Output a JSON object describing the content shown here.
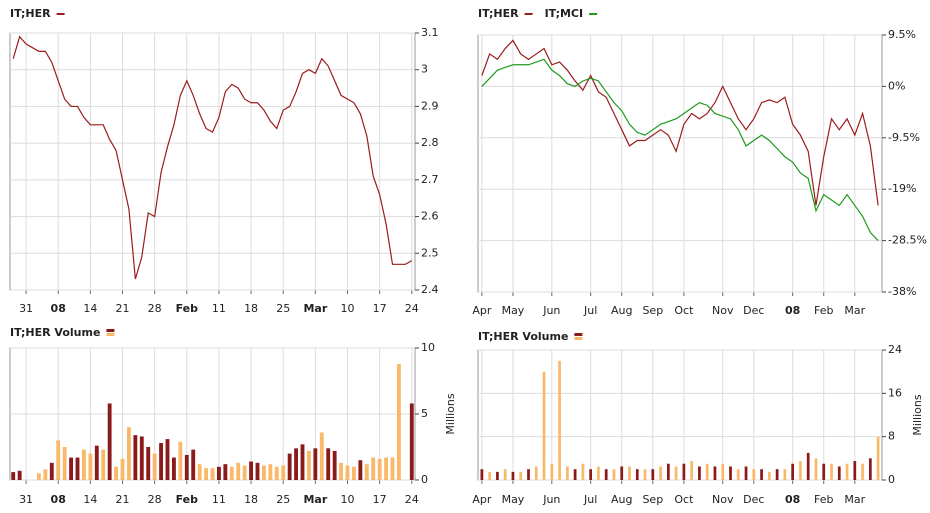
{
  "chart_data": [
    {
      "type": "line",
      "series": [
        {
          "name": "IT;HER",
          "color": "#9b1c1c",
          "values": [
            3.03,
            3.09,
            3.07,
            3.06,
            3.05,
            3.05,
            3.02,
            2.97,
            2.92,
            2.9,
            2.9,
            2.87,
            2.85,
            2.85,
            2.85,
            2.81,
            2.78,
            2.7,
            2.62,
            2.43,
            2.49,
            2.61,
            2.6,
            2.72,
            2.79,
            2.85,
            2.93,
            2.97,
            2.93,
            2.88,
            2.84,
            2.83,
            2.87,
            2.94,
            2.96,
            2.95,
            2.92,
            2.91,
            2.91,
            2.89,
            2.86,
            2.84,
            2.89,
            2.9,
            2.94,
            2.99,
            3.0,
            2.99,
            3.03,
            3.01,
            2.97,
            2.93,
            2.92,
            2.91,
            2.88,
            2.82,
            2.71,
            2.66,
            2.58,
            2.47,
            2.47,
            2.47,
            2.48
          ]
        }
      ],
      "categories": [
        null,
        null,
        "31",
        null,
        null,
        null,
        null,
        "08",
        null,
        null,
        null,
        null,
        "14",
        null,
        null,
        null,
        null,
        "21",
        null,
        null,
        null,
        null,
        "28",
        null,
        null,
        null,
        null,
        "Feb",
        null,
        null,
        null,
        null,
        "11",
        null,
        null,
        null,
        null,
        "18",
        null,
        null,
        null,
        null,
        "25",
        null,
        null,
        null,
        null,
        "Mar",
        null,
        null,
        null,
        null,
        "10",
        null,
        null,
        null,
        null,
        "17",
        null,
        null,
        null,
        null,
        "24"
      ],
      "highlight": {
        "color": "#8b1a1a",
        "categories": [
          7,
          27,
          47
        ]
      },
      "ylim": [
        2.4,
        3.1
      ],
      "yticks": [
        2.4,
        2.5,
        2.6,
        2.7,
        2.8,
        2.9,
        3,
        3.1
      ],
      "grid": true
    },
    {
      "type": "line",
      "series": [
        {
          "name": "IT;HER",
          "color": "#9b1c1c",
          "values": [
            2,
            6,
            5,
            7,
            8.5,
            6,
            5,
            6,
            7,
            4,
            4.5,
            3,
            1,
            -0.7,
            2,
            -1,
            -2,
            -5,
            -8,
            -11,
            -10,
            -10,
            -9,
            -8,
            -9,
            -12,
            -7,
            -5,
            -6,
            -5,
            -3,
            0,
            -3,
            -6,
            -8,
            -6,
            -3,
            -2.5,
            -3,
            -2,
            -7,
            -9,
            -12,
            -22,
            -13,
            -6,
            -8,
            -6,
            -9,
            -5,
            -11,
            -22
          ]
        },
        {
          "name": "IT;MCI",
          "color": "#1e9a1e",
          "values": [
            0,
            1.5,
            3,
            3.5,
            4,
            4,
            4,
            4.5,
            5,
            3,
            2,
            0.5,
            0,
            1,
            1.5,
            1,
            -1,
            -3,
            -4.5,
            -7,
            -8.5,
            -9,
            -8,
            -7,
            -6.5,
            -6,
            -5,
            -4,
            -3,
            -3.5,
            -5,
            -5.5,
            -6,
            -8,
            -11,
            -10,
            -9,
            -10,
            -11.5,
            -13,
            -14,
            -16,
            -17,
            -23,
            -20,
            -21,
            -22,
            -20,
            -22,
            -24,
            -27,
            -28.5
          ]
        }
      ],
      "categories": [
        "Apr",
        null,
        null,
        null,
        "May",
        null,
        null,
        null,
        null,
        "Jun",
        null,
        null,
        null,
        null,
        "Jul",
        null,
        null,
        null,
        "Aug",
        null,
        null,
        null,
        "Sep",
        null,
        null,
        null,
        "Oct",
        null,
        null,
        null,
        null,
        "Nov",
        null,
        null,
        null,
        "Dec",
        null,
        null,
        null,
        null,
        "08",
        null,
        null,
        null,
        "Feb",
        null,
        null,
        null,
        "Mar",
        null,
        null,
        null
      ],
      "highlight": {
        "color": "#8b1a1a",
        "categories": [
          40
        ]
      },
      "ylim": [
        -38,
        9.5
      ],
      "yticks": [
        {
          "value": 9.5,
          "label": "9.5%"
        },
        {
          "value": 0,
          "label": "0%"
        },
        {
          "value": -9.5,
          "label": "-9.5%"
        },
        {
          "value": -19,
          "label": "-19%"
        },
        {
          "value": -28.5,
          "label": "-28.5%"
        },
        {
          "value": -38,
          "label": "-38%"
        }
      ],
      "grid": true
    },
    {
      "type": "bar",
      "series": [
        {
          "name": "IT;HER Volume",
          "values": [
            0.6,
            0.7,
            null,
            null,
            0.5,
            0.8,
            1.3,
            3.0,
            2.5,
            1.7,
            1.7,
            2.3,
            2.0,
            2.6,
            2.3,
            5.8,
            1.0,
            1.6,
            4.0,
            3.4,
            3.3,
            2.5,
            2.0,
            2.8,
            3.1,
            1.7,
            2.9,
            1.9,
            2.3,
            1.2,
            0.9,
            0.9,
            1.0,
            1.2,
            1.0,
            1.3,
            1.1,
            1.4,
            1.3,
            1.1,
            1.2,
            1.0,
            1.1,
            2.0,
            2.4,
            2.7,
            2.2,
            2.4,
            3.6,
            2.4,
            2.2,
            1.3,
            1.1,
            1.0,
            1.5,
            1.2,
            1.7,
            1.6,
            1.7,
            1.7,
            8.8,
            null,
            5.8
          ],
          "colors": [
            "#8b1a1a",
            "#8b1a1a",
            "#8b1a1a",
            "#8b1a1a",
            "#f9b96a",
            "#f9b96a",
            "#8b1a1a",
            "#f9b96a",
            "#f9b96a",
            "#8b1a1a",
            "#8b1a1a",
            "#f9b96a",
            "#f9b96a",
            "#8b1a1a",
            "#f9b96a",
            "#8b1a1a",
            "#f9b96a",
            "#f9b96a",
            "#f9b96a",
            "#8b1a1a",
            "#8b1a1a",
            "#8b1a1a",
            "#f9b96a",
            "#8b1a1a",
            "#8b1a1a",
            "#8b1a1a",
            "#f9b96a",
            "#8b1a1a",
            "#8b1a1a",
            "#f9b96a",
            "#f9b96a",
            "#f9b96a",
            "#8b1a1a",
            "#8b1a1a",
            "#f9b96a",
            "#f9b96a",
            "#f9b96a",
            "#8b1a1a",
            "#8b1a1a",
            "#f9b96a",
            "#f9b96a",
            "#f9b96a",
            "#f9b96a",
            "#8b1a1a",
            "#8b1a1a",
            "#8b1a1a",
            "#f9b96a",
            "#8b1a1a",
            "#f9b96a",
            "#8b1a1a",
            "#8b1a1a",
            "#f9b96a",
            "#f9b96a",
            "#f9b96a",
            "#8b1a1a",
            "#f9b96a",
            "#f9b96a",
            "#f9b96a",
            "#f9b96a",
            "#f9b96a",
            "#f9b96a",
            "#f9b96a",
            "#8b1a1a"
          ]
        }
      ],
      "categories": [
        null,
        null,
        "31",
        null,
        null,
        null,
        null,
        "08",
        null,
        null,
        null,
        null,
        "14",
        null,
        null,
        null,
        null,
        "21",
        null,
        null,
        null,
        null,
        "28",
        null,
        null,
        null,
        null,
        "Feb",
        null,
        null,
        null,
        null,
        "11",
        null,
        null,
        null,
        null,
        "18",
        null,
        null,
        null,
        null,
        "25",
        null,
        null,
        null,
        null,
        "Mar",
        null,
        null,
        null,
        null,
        "10",
        null,
        null,
        null,
        null,
        "17",
        null,
        null,
        null,
        null,
        "24"
      ],
      "highlight": {
        "color": "#8b1a1a",
        "categories": [
          7,
          27,
          47
        ]
      },
      "ylabel": "Millions",
      "ylim": [
        0,
        10
      ],
      "yticks": [
        0,
        5,
        10
      ],
      "grid": true
    },
    {
      "type": "bar",
      "series": [
        {
          "name": "IT;HER Volume",
          "values": [
            2,
            1.5,
            1.5,
            2,
            1.5,
            1.5,
            2,
            2.5,
            20,
            3,
            22,
            2.5,
            2,
            3,
            2,
            2.5,
            2,
            2,
            2.5,
            2.5,
            2,
            2,
            2,
            2.5,
            3,
            2.5,
            3,
            3.5,
            2.5,
            3,
            2.5,
            3,
            2.5,
            2,
            2.5,
            2,
            2,
            1.5,
            2,
            2,
            3,
            3.5,
            5,
            4,
            3,
            3,
            2.5,
            3,
            3.5,
            3,
            4,
            8
          ],
          "colors": [
            "#8b1a1a",
            "#f9b96a",
            "#8b1a1a",
            "#f9b96a",
            "#8b1a1a",
            "#f9b96a",
            "#8b1a1a",
            "#f9b96a",
            "#f9b96a",
            "#f9b96a",
            "#f9b96a",
            "#f9b96a",
            "#8b1a1a",
            "#f9b96a",
            "#8b1a1a",
            "#f9b96a",
            "#8b1a1a",
            "#f9b96a",
            "#8b1a1a",
            "#f9b96a",
            "#8b1a1a",
            "#f9b96a",
            "#8b1a1a",
            "#f9b96a",
            "#8b1a1a",
            "#f9b96a",
            "#8b1a1a",
            "#f9b96a",
            "#8b1a1a",
            "#f9b96a",
            "#8b1a1a",
            "#f9b96a",
            "#8b1a1a",
            "#f9b96a",
            "#8b1a1a",
            "#f9b96a",
            "#8b1a1a",
            "#f9b96a",
            "#8b1a1a",
            "#f9b96a",
            "#8b1a1a",
            "#f9b96a",
            "#8b1a1a",
            "#f9b96a",
            "#8b1a1a",
            "#f9b96a",
            "#8b1a1a",
            "#f9b96a",
            "#8b1a1a",
            "#f9b96a",
            "#8b1a1a",
            "#f9b96a"
          ]
        }
      ],
      "categories": [
        "Apr",
        null,
        null,
        null,
        "May",
        null,
        null,
        null,
        null,
        "Jun",
        null,
        null,
        null,
        null,
        "Jul",
        null,
        null,
        null,
        "Aug",
        null,
        null,
        null,
        "Sep",
        null,
        null,
        null,
        "Oct",
        null,
        null,
        null,
        null,
        "Nov",
        null,
        null,
        null,
        "Dec",
        null,
        null,
        null,
        null,
        "08",
        null,
        null,
        null,
        "Feb",
        null,
        null,
        null,
        "Mar",
        null,
        null,
        null
      ],
      "highlight": {
        "color": "#8b1a1a",
        "categories": [
          40
        ]
      },
      "ylabel": "Millions",
      "ylim": [
        0,
        24
      ],
      "yticks": [
        0,
        8,
        16,
        24
      ],
      "grid": true
    }
  ]
}
